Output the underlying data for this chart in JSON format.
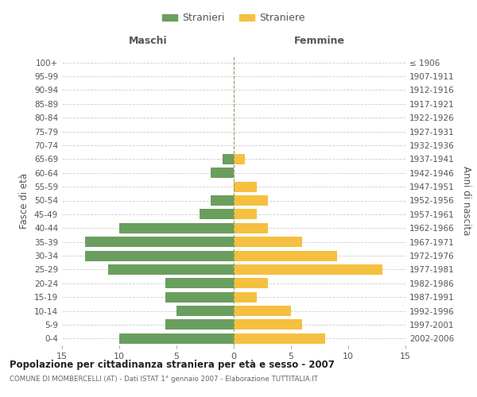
{
  "age_groups": [
    "0-4",
    "5-9",
    "10-14",
    "15-19",
    "20-24",
    "25-29",
    "30-34",
    "35-39",
    "40-44",
    "45-49",
    "50-54",
    "55-59",
    "60-64",
    "65-69",
    "70-74",
    "75-79",
    "80-84",
    "85-89",
    "90-94",
    "95-99",
    "100+"
  ],
  "birth_years": [
    "2002-2006",
    "1997-2001",
    "1992-1996",
    "1987-1991",
    "1982-1986",
    "1977-1981",
    "1972-1976",
    "1967-1971",
    "1962-1966",
    "1957-1961",
    "1952-1956",
    "1947-1951",
    "1942-1946",
    "1937-1941",
    "1932-1936",
    "1927-1931",
    "1922-1926",
    "1917-1921",
    "1912-1916",
    "1907-1911",
    "≤ 1906"
  ],
  "males": [
    10,
    6,
    5,
    6,
    6,
    11,
    13,
    13,
    10,
    3,
    2,
    0,
    2,
    1,
    0,
    0,
    0,
    0,
    0,
    0,
    0
  ],
  "females": [
    8,
    6,
    5,
    2,
    3,
    13,
    9,
    6,
    3,
    2,
    3,
    2,
    0,
    1,
    0,
    0,
    0,
    0,
    0,
    0,
    0
  ],
  "male_color": "#6a9e5e",
  "female_color": "#f5c040",
  "title": "Popolazione per cittadinanza straniera per età e sesso - 2007",
  "subtitle": "COMUNE DI MOMBERCELLI (AT) - Dati ISTAT 1° gennaio 2007 - Elaborazione TUTTITALIA.IT",
  "xlabel_left": "Maschi",
  "xlabel_right": "Femmine",
  "ylabel_left": "Fasce di età",
  "ylabel_right": "Anni di nascita",
  "legend_males": "Stranieri",
  "legend_females": "Straniere",
  "xlim": 15,
  "bg_color": "#ffffff",
  "grid_color": "#cccccc",
  "bar_height": 0.75
}
